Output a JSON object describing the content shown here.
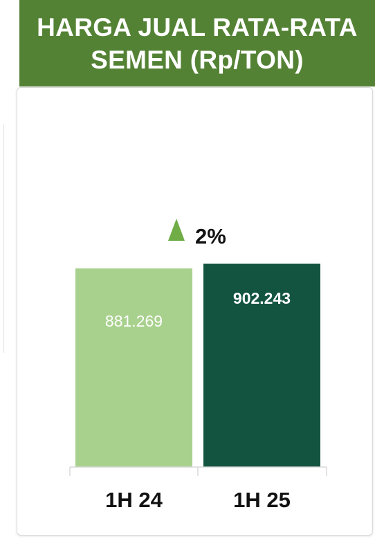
{
  "header": {
    "title": "HARGA JUAL RATA-RATA SEMEN (Rp/TON)"
  },
  "growth": {
    "label": "2%",
    "direction": "up",
    "icon": "triangle-up-icon",
    "color": "#70ad47"
  },
  "chart_data": {
    "type": "bar",
    "title": "HARGA JUAL RATA-RATA SEMEN (Rp/TON)",
    "categories": [
      "1H 24",
      "1H 25"
    ],
    "values": [
      881269,
      902243
    ],
    "value_labels": [
      "881.269",
      "902.243"
    ],
    "colors": [
      "#a9d18e",
      "#135440"
    ],
    "ylim": [
      0,
      902243
    ],
    "grid": false,
    "legend": "none"
  }
}
